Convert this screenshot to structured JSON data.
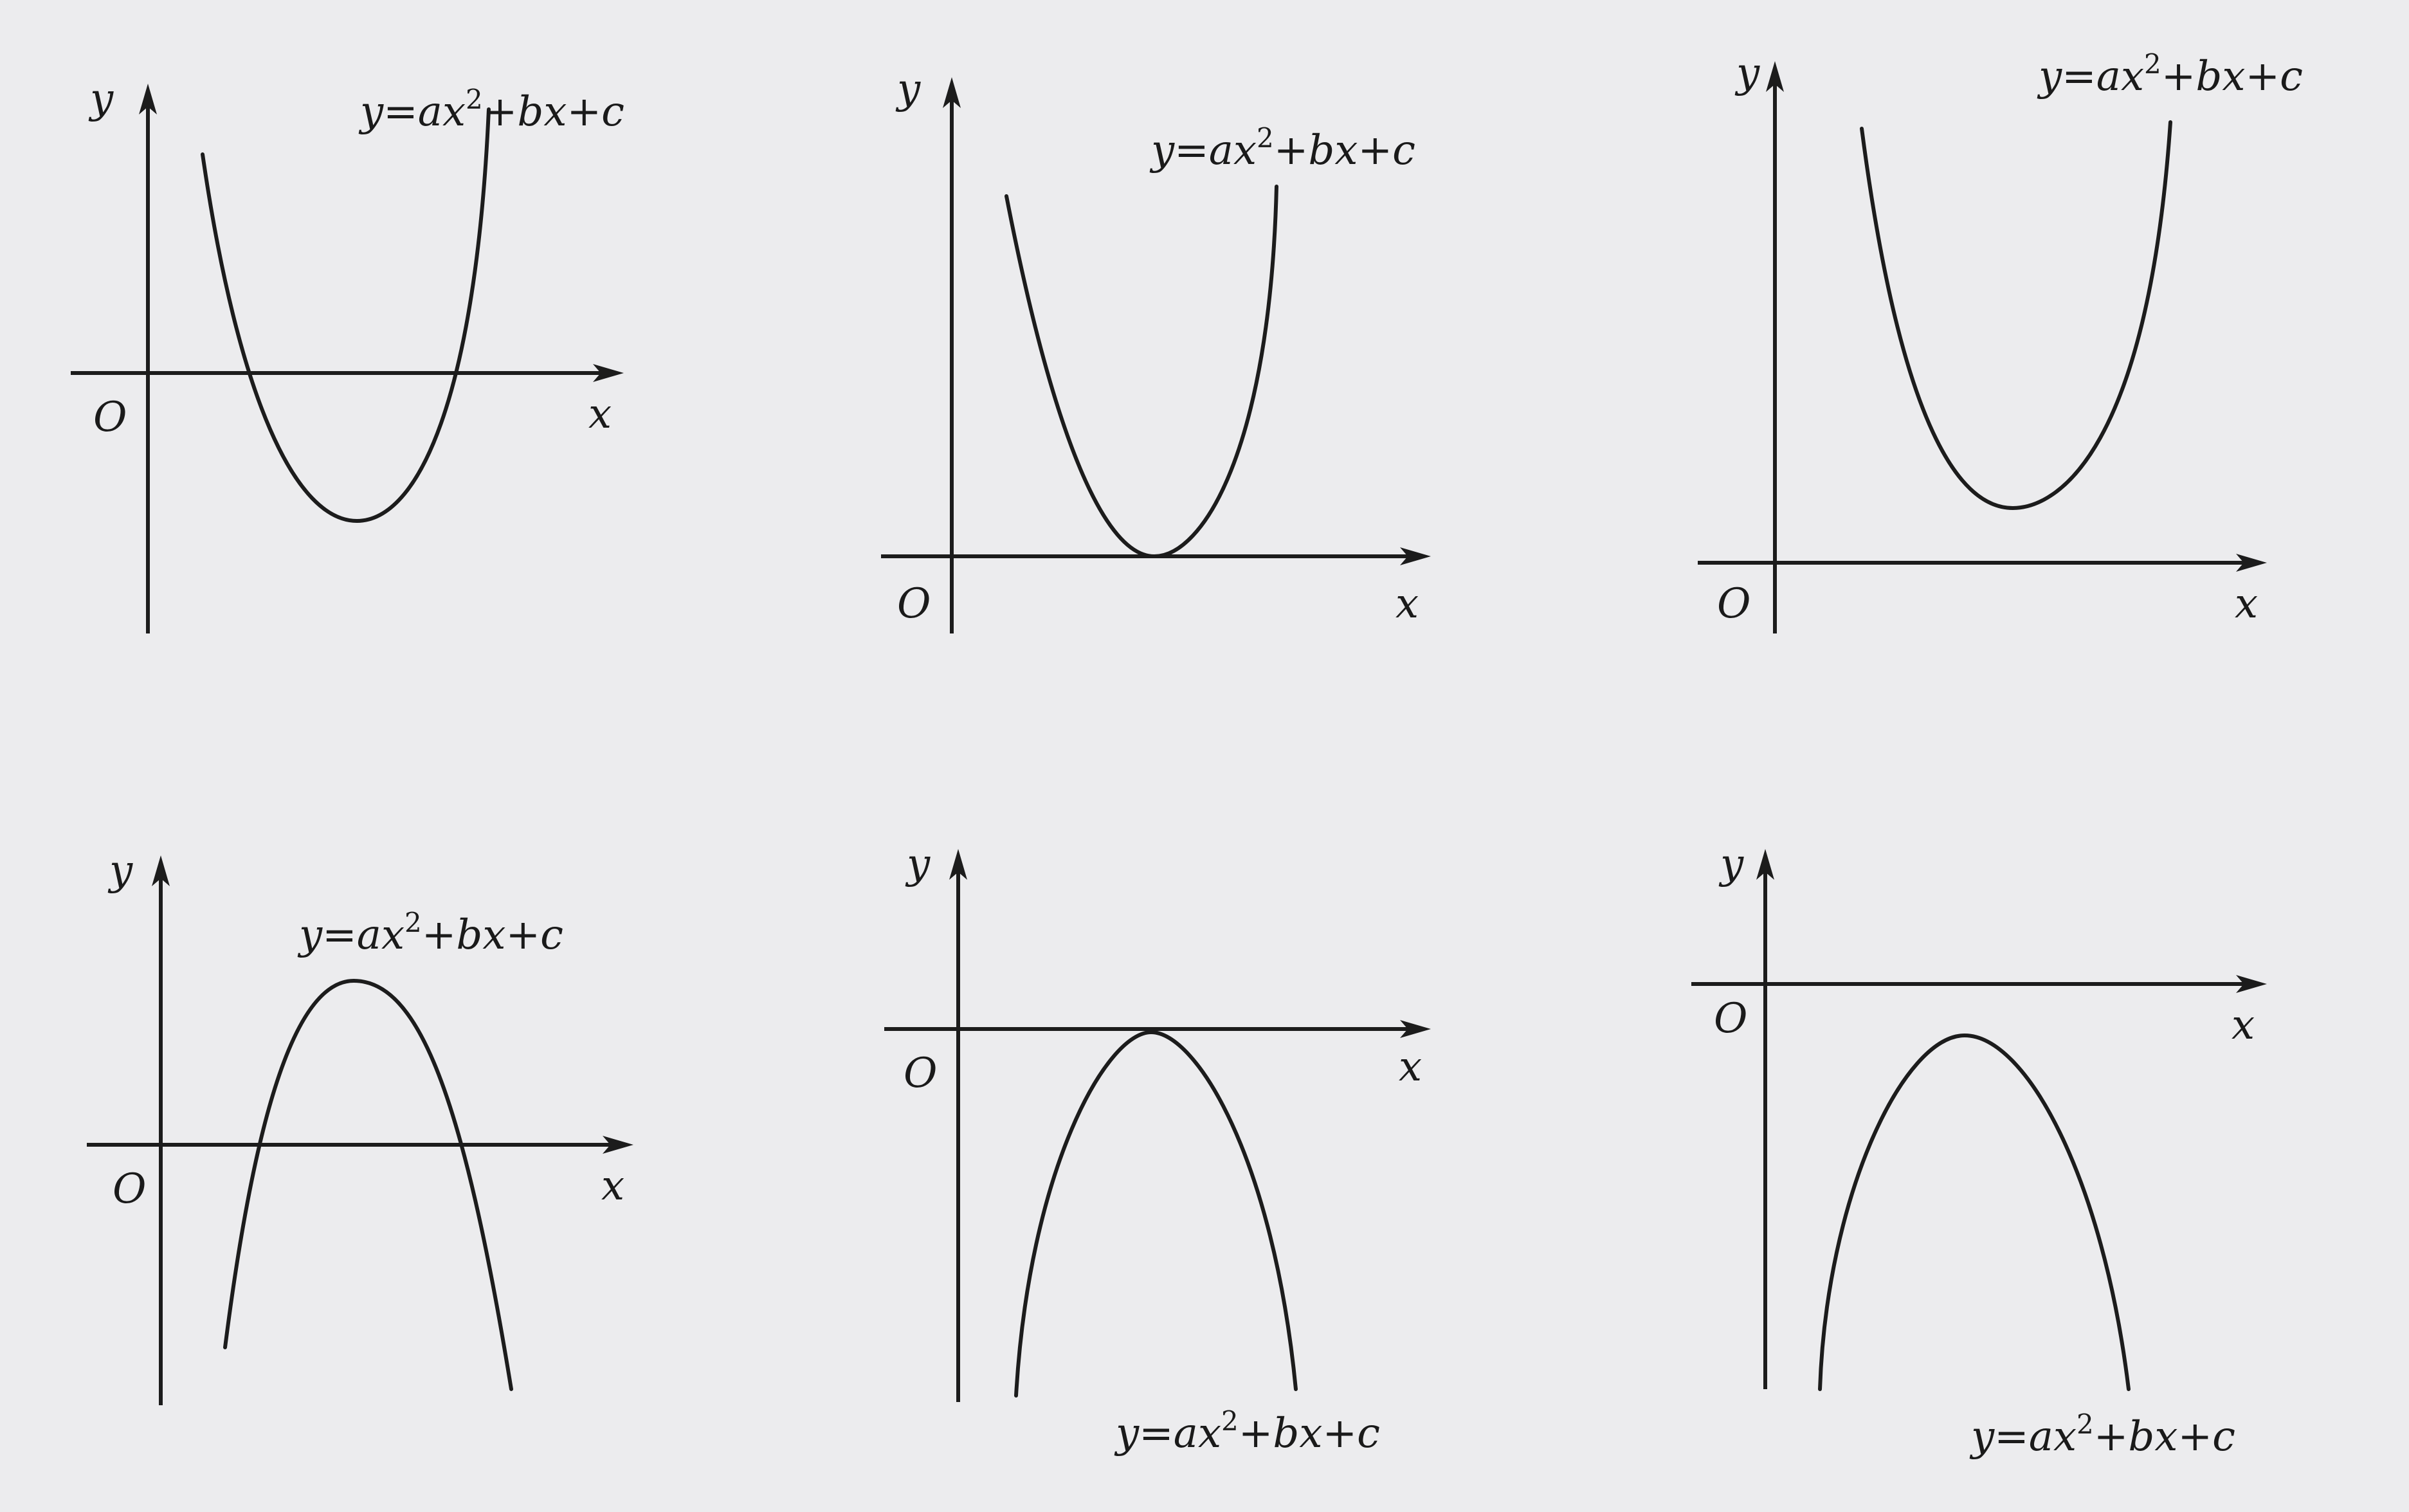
{
  "axis_labels": {
    "x": "x",
    "y": "y",
    "origin": "O"
  },
  "equation": {
    "prefix": "y",
    "equals": "=",
    "a": "a",
    "x1": "x",
    "exp": "2",
    "plus1": "+",
    "b": "b",
    "x2": "x",
    "plus2": "+",
    "c": "c"
  },
  "colors": {
    "ink": "#1c1c1c",
    "paper": "#ececee"
  },
  "panels": [
    {
      "id": "panel-1",
      "opens": "up",
      "vertex_position": "below-x-axis",
      "roots": 2
    },
    {
      "id": "panel-2",
      "opens": "up",
      "vertex_position": "on-x-axis",
      "roots": 1
    },
    {
      "id": "panel-3",
      "opens": "up",
      "vertex_position": "above-x-axis",
      "roots": 0
    },
    {
      "id": "panel-4",
      "opens": "down",
      "vertex_position": "above-x-axis",
      "roots": 2
    },
    {
      "id": "panel-5",
      "opens": "down",
      "vertex_position": "on-x-axis",
      "roots": 1
    },
    {
      "id": "panel-6",
      "opens": "down",
      "vertex_position": "below-x-axis",
      "roots": 0
    }
  ]
}
